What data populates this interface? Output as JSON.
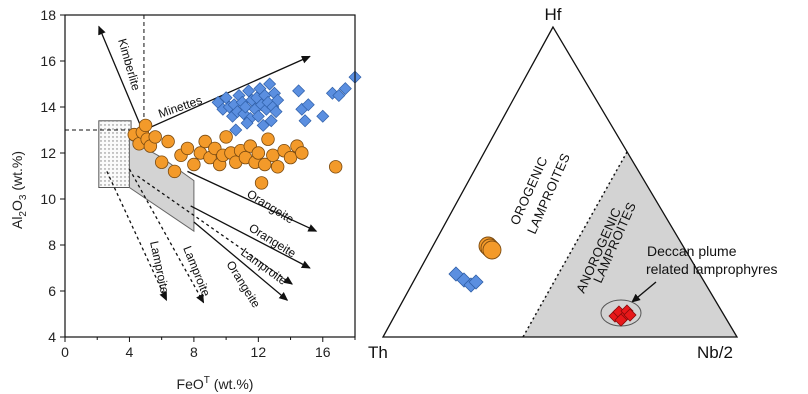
{
  "colors": {
    "orange": "#f39a2a",
    "blue": "#5b8fe0",
    "red": "#e8181a",
    "shade": "#d3d3d3"
  },
  "chart_data": [
    {
      "type": "scatter",
      "xlabel": "FeOᵀ (wt.%)",
      "ylabel": "Al₂O₃ (wt.%)",
      "xlim": [
        0,
        18
      ],
      "ylim": [
        4,
        18
      ],
      "xticks": [
        "0",
        "4",
        "8",
        "12",
        "16"
      ],
      "yticks": [
        "4",
        "6",
        "8",
        "10",
        "12",
        "14",
        "16",
        "18"
      ],
      "annotations": {
        "kimberlite": "Kimberlite",
        "minettes": "Minettes",
        "orangeite_1": "Orangeite",
        "orangeite_2": "Orangeite",
        "lamproite_1": "Lamproite",
        "orangeite_3": "Orangeite",
        "lamproite_2": "Lamproite",
        "lamproite_3": "Lamproite"
      },
      "series": [
        {
          "marker": "diamond",
          "color": "blue",
          "points": [
            [
              9.5,
              14.2
            ],
            [
              9.8,
              13.9
            ],
            [
              10.0,
              14.4
            ],
            [
              10.2,
              14.0
            ],
            [
              10.4,
              13.6
            ],
            [
              10.5,
              14.1
            ],
            [
              10.7,
              13.8
            ],
            [
              10.8,
              14.5
            ],
            [
              11.0,
              14.2
            ],
            [
              11.1,
              13.7
            ],
            [
              11.2,
              14.0
            ],
            [
              11.4,
              14.7
            ],
            [
              11.5,
              13.5
            ],
            [
              11.6,
              14.3
            ],
            [
              11.8,
              13.9
            ],
            [
              11.9,
              14.4
            ],
            [
              12.0,
              13.6
            ],
            [
              12.1,
              14.8
            ],
            [
              12.2,
              14.1
            ],
            [
              12.3,
              13.2
            ],
            [
              12.4,
              14.5
            ],
            [
              12.5,
              13.9
            ],
            [
              12.6,
              14.2
            ],
            [
              12.7,
              15.0
            ],
            [
              12.8,
              13.4
            ],
            [
              12.9,
              14.0
            ],
            [
              13.0,
              14.6
            ],
            [
              13.1,
              13.8
            ],
            [
              13.2,
              14.3
            ],
            [
              10.6,
              13.0
            ],
            [
              11.3,
              13.3
            ],
            [
              14.5,
              14.7
            ],
            [
              14.7,
              13.9
            ],
            [
              14.9,
              13.4
            ],
            [
              15.1,
              14.1
            ],
            [
              16.0,
              13.6
            ],
            [
              16.6,
              14.6
            ],
            [
              17.0,
              14.5
            ],
            [
              17.4,
              14.8
            ],
            [
              18.0,
              15.3
            ]
          ]
        },
        {
          "marker": "circle",
          "color": "orange",
          "points": [
            [
              4.3,
              12.8
            ],
            [
              4.6,
              12.4
            ],
            [
              4.8,
              12.9
            ],
            [
              5.0,
              13.2
            ],
            [
              5.1,
              12.6
            ],
            [
              5.3,
              12.3
            ],
            [
              5.6,
              12.7
            ],
            [
              6.0,
              11.6
            ],
            [
              6.4,
              12.5
            ],
            [
              6.8,
              11.2
            ],
            [
              7.2,
              11.9
            ],
            [
              7.6,
              12.2
            ],
            [
              8.0,
              11.5
            ],
            [
              8.4,
              12.0
            ],
            [
              8.7,
              12.5
            ],
            [
              9.0,
              11.8
            ],
            [
              9.3,
              12.2
            ],
            [
              9.6,
              11.5
            ],
            [
              9.8,
              11.9
            ],
            [
              10.0,
              12.7
            ],
            [
              10.3,
              12.0
            ],
            [
              10.6,
              11.6
            ],
            [
              10.9,
              12.1
            ],
            [
              11.2,
              11.8
            ],
            [
              11.5,
              12.3
            ],
            [
              11.8,
              11.6
            ],
            [
              12.0,
              12.0
            ],
            [
              12.2,
              10.7
            ],
            [
              12.4,
              11.5
            ],
            [
              12.6,
              12.6
            ],
            [
              12.9,
              11.9
            ],
            [
              13.2,
              11.4
            ],
            [
              13.6,
              12.1
            ],
            [
              14.0,
              11.8
            ],
            [
              14.4,
              12.3
            ],
            [
              14.7,
              12.0
            ],
            [
              16.8,
              11.4
            ]
          ]
        }
      ]
    },
    {
      "type": "ternary",
      "apices": {
        "top": "Hf",
        "left": "Th",
        "right": "Nb/2"
      },
      "fields": {
        "orogenic_1": "OROGENIC",
        "orogenic_2": "LAMPROITES",
        "anorogenic_1": "ANOROGENIC",
        "anorogenic_2": "LAMPROITES"
      },
      "legend": {
        "line1": "Deccan plume",
        "line2": "related lamprophyres"
      },
      "series": [
        {
          "marker": "circle",
          "color": "orange",
          "count": 3
        },
        {
          "marker": "diamond",
          "color": "blue",
          "count": 4
        },
        {
          "marker": "diamond",
          "color": "red",
          "count": 6
        }
      ]
    }
  ]
}
